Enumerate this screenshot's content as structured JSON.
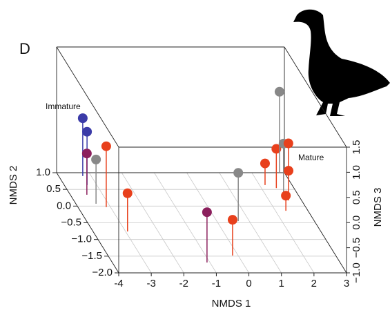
{
  "chart_data": {
    "type": "scatter3d",
    "panel_label": "D",
    "xlabel": "NMDS 1",
    "ylabel": "NMDS 2",
    "zlabel": "NMDS 3",
    "annotations": [
      "Immature",
      "Mature"
    ],
    "xlim": [
      -4,
      3
    ],
    "ylim": [
      -2,
      1
    ],
    "zlim": [
      -1,
      1.5
    ],
    "xticks": [
      -4,
      -3,
      -2,
      -1,
      0,
      1,
      2,
      3
    ],
    "yticks": [
      {
        "value": -2,
        "label": "−2.0"
      },
      {
        "value": -1.5,
        "label": "−1.5"
      },
      {
        "value": -1,
        "label": "−1.0"
      },
      {
        "value": -0.5,
        "label": "−0.5"
      },
      {
        "value": 0,
        "label": "0.0"
      },
      {
        "value": 0.5,
        "label": "0.5"
      },
      {
        "value": 1,
        "label": "1.0"
      }
    ],
    "zticks": [
      {
        "value": -1,
        "label": "−1.0"
      },
      {
        "value": -0.5,
        "label": "−0.5"
      },
      {
        "value": 0,
        "label": "0.0"
      },
      {
        "value": 0.5,
        "label": "0.5"
      },
      {
        "value": 1,
        "label": "1.0"
      },
      {
        "value": 1.5,
        "label": "1.5"
      }
    ],
    "grid": true,
    "x": [
      -3.26,
      -3.3,
      -3.49,
      -3.38,
      -3.13,
      -2.94,
      -1.09,
      -0.17,
      0.66,
      2.17,
      2.46,
      2.85,
      2.58,
      3.06,
      2.6,
      2.32
    ],
    "y": [
      0.9,
      0.63,
      0.34,
      0.07,
      -0.03,
      -0.76,
      -1.69,
      -1.48,
      -0.45,
      0.63,
      0.54,
      1.0,
      0.38,
      0.9,
      0.17,
      -0.14
    ],
    "z": [
      0.15,
      0.06,
      -0.18,
      -0.12,
      0.21,
      -0.24,
      0.0,
      -0.29,
      -0.04,
      -0.57,
      -0.22,
      0.61,
      -0.01,
      -0.35,
      -0.41,
      -0.7
    ],
    "colors": [
      "#3b3ba8",
      "#3b3ba8",
      "#8b1f5c",
      "#888888",
      "#e8401c",
      "#e8401c",
      "#8b1f5c",
      "#e8401c",
      "#888888",
      "#e8401c",
      "#e8401c",
      "#888888",
      "#888888",
      "#e8401c",
      "#e8401c",
      "#e8401c"
    ]
  }
}
